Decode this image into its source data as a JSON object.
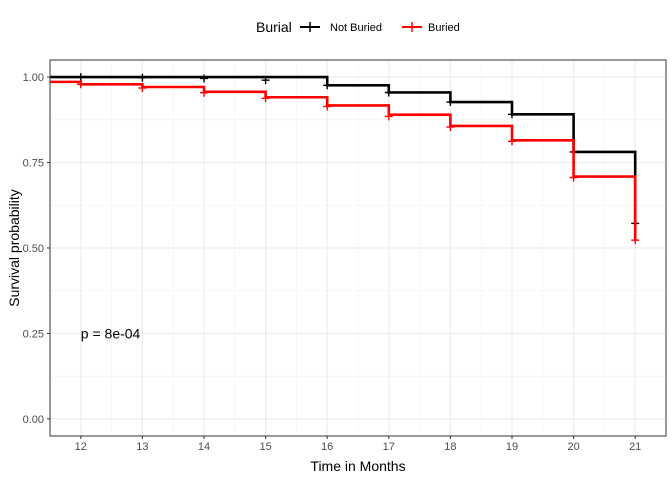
{
  "chart_data": {
    "type": "line",
    "subtype": "kaplan-meier step",
    "xlabel": "Time in Months",
    "ylabel": "Survival probability",
    "xlim": [
      11.5,
      21.5
    ],
    "ylim": [
      -0.05,
      1.05
    ],
    "x_ticks": [
      12,
      13,
      14,
      15,
      16,
      17,
      18,
      19,
      20,
      21
    ],
    "x_tick_labels": [
      "12",
      "13",
      "14",
      "15",
      "16",
      "17",
      "18",
      "19",
      "20",
      "21"
    ],
    "y_ticks": [
      0,
      0.25,
      0.5,
      0.75,
      1.0
    ],
    "y_tick_labels": [
      "0.00",
      "0.25",
      "0.50",
      "0.75",
      "1.00"
    ],
    "grid": true,
    "legend": {
      "title": "Burial",
      "position": "top",
      "entries": [
        "Not Buried",
        "Buried"
      ]
    },
    "annotation": "p = 8e-04",
    "series": [
      {
        "name": "Not Buried",
        "color": "#000000",
        "start_y": 1.0,
        "steps": [
          {
            "x": 16,
            "y": 0.976
          },
          {
            "x": 17,
            "y": 0.955
          },
          {
            "x": 18,
            "y": 0.927
          },
          {
            "x": 19,
            "y": 0.891
          },
          {
            "x": 20,
            "y": 0.781
          },
          {
            "x": 21,
            "y": 0.572
          }
        ],
        "censor_marks": [
          {
            "x": 12,
            "y": 1.0
          },
          {
            "x": 13,
            "y": 0.998
          },
          {
            "x": 14,
            "y": 0.996
          },
          {
            "x": 15,
            "y": 0.991
          },
          {
            "x": 16,
            "y": 0.976
          },
          {
            "x": 17,
            "y": 0.955
          },
          {
            "x": 18,
            "y": 0.927
          },
          {
            "x": 19,
            "y": 0.891
          },
          {
            "x": 20,
            "y": 0.781
          },
          {
            "x": 21,
            "y": 0.572
          }
        ]
      },
      {
        "name": "Buried",
        "color": "#ff0000",
        "start_y": 0.986,
        "steps": [
          {
            "x": 12,
            "y": 0.979
          },
          {
            "x": 13,
            "y": 0.971
          },
          {
            "x": 14,
            "y": 0.957
          },
          {
            "x": 15,
            "y": 0.941
          },
          {
            "x": 16,
            "y": 0.917
          },
          {
            "x": 17,
            "y": 0.89
          },
          {
            "x": 18,
            "y": 0.857
          },
          {
            "x": 19,
            "y": 0.815
          },
          {
            "x": 20,
            "y": 0.709
          },
          {
            "x": 21,
            "y": 0.523
          }
        ],
        "censor_marks": [
          {
            "x": 12,
            "y": 0.979
          },
          {
            "x": 13,
            "y": 0.968
          },
          {
            "x": 14,
            "y": 0.954
          },
          {
            "x": 15,
            "y": 0.938
          },
          {
            "x": 16,
            "y": 0.914
          },
          {
            "x": 17,
            "y": 0.885
          },
          {
            "x": 18,
            "y": 0.854
          },
          {
            "x": 19,
            "y": 0.812
          },
          {
            "x": 20,
            "y": 0.706
          },
          {
            "x": 21,
            "y": 0.523
          }
        ]
      }
    ]
  }
}
